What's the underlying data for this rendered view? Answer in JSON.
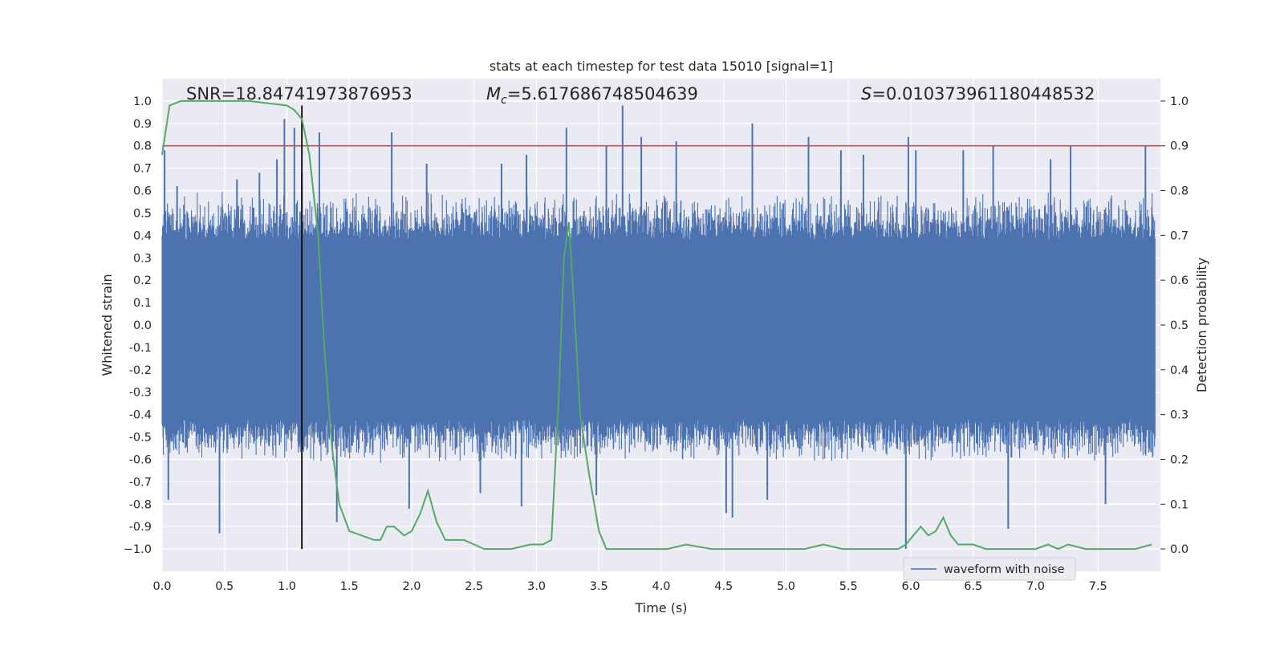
{
  "chart_data": {
    "type": "line",
    "title": "stats at each timestep for test data 15010 [signal=1]",
    "xlabel": "Time (s)",
    "ylabel": "Whitened strain",
    "y2label": "Detection probability",
    "xlim": [
      0.0,
      8.0
    ],
    "ylim": [
      -1.1,
      1.1
    ],
    "y2lim": [
      -0.05,
      1.05
    ],
    "xticks": [
      "0.0",
      "0.5",
      "1.0",
      "1.5",
      "2.0",
      "2.5",
      "3.0",
      "3.5",
      "4.0",
      "4.5",
      "5.0",
      "5.5",
      "6.0",
      "6.5",
      "7.0",
      "7.5"
    ],
    "yticks": [
      "1.0",
      "0.9",
      "0.8",
      "0.7",
      "0.6",
      "0.5",
      "0.4",
      "0.3",
      "0.2",
      "0.1",
      "0.0",
      "-0.1",
      "-0.2",
      "-0.3",
      "-0.4",
      "-0.5",
      "-0.6",
      "-0.7",
      "-0.8",
      "-0.9",
      "−1.0"
    ],
    "y2ticks": [
      "1.0",
      "0.9",
      "0.8",
      "0.7",
      "0.6",
      "0.5",
      "0.4",
      "0.3",
      "0.2",
      "0.1",
      "0.0"
    ],
    "grid": true,
    "legend_position": "lower right",
    "annotations": {
      "snr": "SNR=18.84741973876953",
      "mc_symbol": "M",
      "mc_sub": "c",
      "mc_value": "=5.617686748504639",
      "s_symbol": "S",
      "s_value": "=0.010373961180448532"
    },
    "series": [
      {
        "name": "waveform with noise",
        "axis": "left",
        "color": "#4c72b0",
        "envelope_quiet": [
          -0.42,
          0.38
        ],
        "spike_peaks": [
          {
            "x": 0.02,
            "y": 0.78
          },
          {
            "x": 0.05,
            "y": -0.78
          },
          {
            "x": 0.12,
            "y": 0.62
          },
          {
            "x": 0.46,
            "y": -0.93
          },
          {
            "x": 0.6,
            "y": 0.65
          },
          {
            "x": 0.78,
            "y": 0.68
          },
          {
            "x": 0.92,
            "y": 0.74
          },
          {
            "x": 0.98,
            "y": 0.92
          },
          {
            "x": 1.06,
            "y": 0.88
          },
          {
            "x": 1.12,
            "y": 0.68
          },
          {
            "x": 1.26,
            "y": 0.86
          },
          {
            "x": 1.4,
            "y": -0.88
          },
          {
            "x": 1.84,
            "y": 0.86
          },
          {
            "x": 1.98,
            "y": -0.82
          },
          {
            "x": 2.12,
            "y": 0.72
          },
          {
            "x": 2.55,
            "y": -0.75
          },
          {
            "x": 2.72,
            "y": 0.72
          },
          {
            "x": 2.88,
            "y": -0.81
          },
          {
            "x": 2.92,
            "y": 0.76
          },
          {
            "x": 3.24,
            "y": 0.88
          },
          {
            "x": 3.48,
            "y": -0.76
          },
          {
            "x": 3.56,
            "y": 0.8
          },
          {
            "x": 3.69,
            "y": 0.98
          },
          {
            "x": 3.84,
            "y": 0.84
          },
          {
            "x": 4.12,
            "y": 0.82
          },
          {
            "x": 4.52,
            "y": -0.84
          },
          {
            "x": 4.57,
            "y": -0.86
          },
          {
            "x": 4.73,
            "y": 0.9
          },
          {
            "x": 4.85,
            "y": -0.78
          },
          {
            "x": 5.18,
            "y": 0.84
          },
          {
            "x": 5.44,
            "y": 0.78
          },
          {
            "x": 5.62,
            "y": 0.76
          },
          {
            "x": 5.96,
            "y": -1.0
          },
          {
            "x": 5.98,
            "y": 0.84
          },
          {
            "x": 6.04,
            "y": 0.78
          },
          {
            "x": 6.42,
            "y": 0.78
          },
          {
            "x": 6.66,
            "y": 0.8
          },
          {
            "x": 6.78,
            "y": -0.91
          },
          {
            "x": 7.12,
            "y": 0.74
          },
          {
            "x": 7.28,
            "y": 0.8
          },
          {
            "x": 7.56,
            "y": -0.8
          },
          {
            "x": 7.88,
            "y": 0.8
          }
        ]
      },
      {
        "axis": "right",
        "color": "#55a868",
        "x": [
          0.0,
          0.06,
          0.15,
          0.4,
          0.7,
          1.0,
          1.06,
          1.12,
          1.18,
          1.25,
          1.3,
          1.36,
          1.42,
          1.5,
          1.6,
          1.7,
          1.75,
          1.8,
          1.86,
          1.94,
          2.0,
          2.07,
          2.13,
          2.2,
          2.27,
          2.35,
          2.42,
          2.5,
          2.58,
          2.65,
          2.8,
          2.95,
          3.05,
          3.12,
          3.18,
          3.22,
          3.26,
          3.3,
          3.35,
          3.42,
          3.5,
          3.56,
          3.7,
          3.9,
          4.05,
          4.2,
          4.4,
          4.8,
          5.0,
          5.15,
          5.3,
          5.45,
          5.6,
          5.8,
          5.9,
          5.96,
          6.02,
          6.08,
          6.14,
          6.2,
          6.26,
          6.32,
          6.38,
          6.5,
          6.6,
          6.8,
          7.0,
          7.1,
          7.18,
          7.26,
          7.4,
          7.6,
          7.8,
          7.93
        ],
        "y": [
          0.88,
          0.99,
          1.0,
          1.0,
          1.0,
          0.99,
          0.98,
          0.96,
          0.88,
          0.7,
          0.45,
          0.23,
          0.1,
          0.04,
          0.03,
          0.02,
          0.02,
          0.05,
          0.05,
          0.03,
          0.04,
          0.08,
          0.13,
          0.06,
          0.02,
          0.02,
          0.02,
          0.01,
          0.0,
          0.0,
          0.0,
          0.01,
          0.01,
          0.02,
          0.35,
          0.65,
          0.73,
          0.55,
          0.3,
          0.17,
          0.04,
          0.0,
          0.0,
          0.0,
          0.0,
          0.01,
          0.0,
          0.0,
          0.0,
          0.0,
          0.01,
          0.0,
          0.0,
          0.0,
          0.0,
          0.01,
          0.03,
          0.05,
          0.03,
          0.04,
          0.07,
          0.03,
          0.01,
          0.01,
          0.0,
          0.0,
          0.0,
          0.01,
          0.0,
          0.01,
          0.0,
          0.0,
          0.0,
          0.01
        ]
      }
    ],
    "threshold_line": {
      "y2": 0.9,
      "color": "#c44e52"
    },
    "marker_line": {
      "x": 1.12,
      "color": "#000000"
    }
  }
}
